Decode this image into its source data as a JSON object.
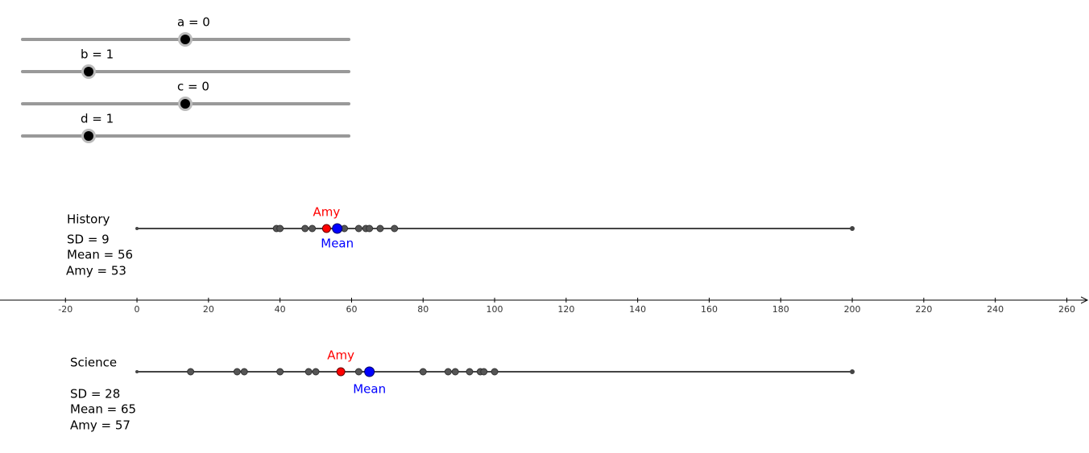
{
  "sliders": [
    {
      "label": "a = 0"
    },
    {
      "label": "b = 1"
    },
    {
      "label": "c = 0"
    },
    {
      "label": "d = 1"
    }
  ],
  "axis": {
    "xlim": [
      -38.3,
      266.2
    ],
    "xticks": [
      -20,
      0,
      20,
      40,
      60,
      80,
      100,
      120,
      140,
      160,
      180,
      200,
      220,
      240,
      260
    ]
  },
  "rows": [
    {
      "title": "History",
      "sd_label": "SD = 9",
      "mean_label": "Mean = 56",
      "amy_label": "Amy = 53",
      "amy_marker": "Amy",
      "mean_marker": "Mean",
      "range": [
        0,
        200
      ],
      "points": [
        39,
        40,
        47,
        49,
        58,
        62,
        64,
        65,
        68,
        72
      ],
      "amy": 53,
      "mean": 56
    },
    {
      "title": "Science",
      "sd_label": "SD = 28",
      "mean_label": "Mean = 65",
      "amy_label": "Amy = 57",
      "amy_marker": "Amy",
      "mean_marker": "Mean",
      "range": [
        0,
        200
      ],
      "points": [
        15,
        28,
        30,
        40,
        48,
        50,
        62,
        80,
        87,
        89,
        93,
        96,
        97,
        100
      ],
      "amy": 57,
      "mean": 65
    }
  ]
}
